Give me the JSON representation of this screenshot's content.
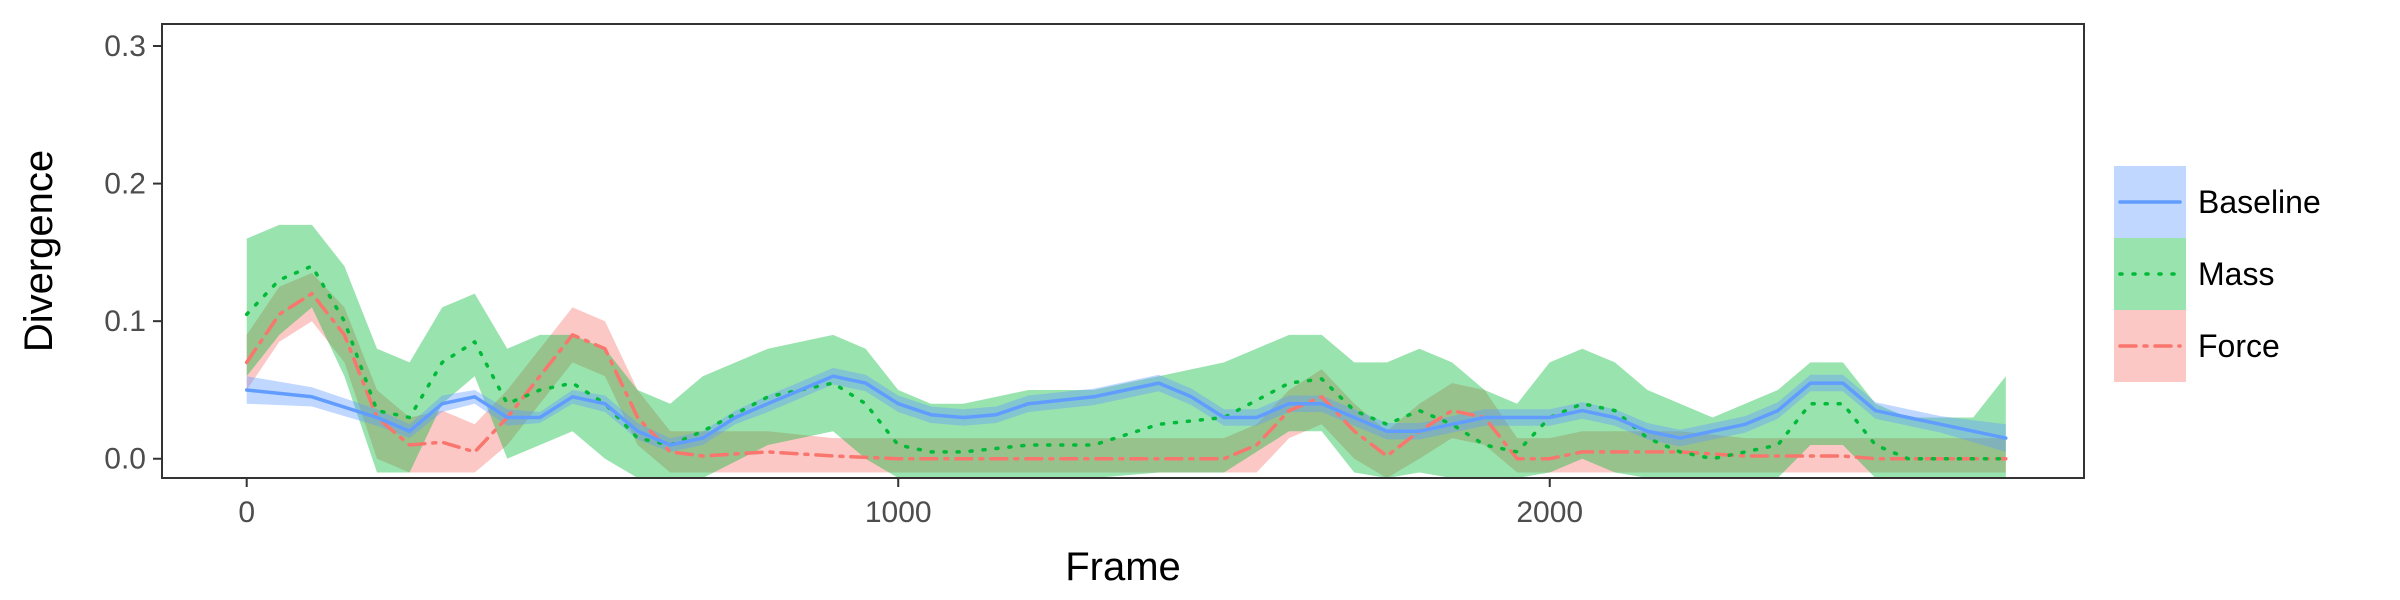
{
  "chart_data": {
    "type": "line",
    "xlabel": "Frame",
    "ylabel": "Divergence",
    "xlim": [
      -130,
      2820
    ],
    "ylim": [
      -0.014,
      0.316
    ],
    "xticks": [
      0,
      1000,
      2000
    ],
    "xtick_labels": [
      "0",
      "1000",
      "2000"
    ],
    "yticks": [
      0.0,
      0.1,
      0.2,
      0.3
    ],
    "ytick_labels": [
      "0.0",
      "0.1",
      "0.2",
      "0.3"
    ],
    "grid": false,
    "legend_position": "right",
    "series": [
      {
        "name": "Baseline",
        "color": "#619CFF",
        "line_style": "solid",
        "x": [
          0,
          100,
          200,
          250,
          300,
          350,
          400,
          450,
          500,
          550,
          600,
          650,
          700,
          750,
          800,
          850,
          900,
          950,
          1000,
          1050,
          1100,
          1150,
          1200,
          1300,
          1400,
          1450,
          1500,
          1550,
          1600,
          1650,
          1700,
          1750,
          1800,
          1850,
          1900,
          1950,
          2000,
          2050,
          2100,
          2150,
          2200,
          2250,
          2300,
          2350,
          2400,
          2450,
          2500,
          2550,
          2600,
          2650,
          2700
        ],
        "y": [
          0.05,
          0.045,
          0.03,
          0.02,
          0.04,
          0.045,
          0.03,
          0.03,
          0.045,
          0.04,
          0.02,
          0.01,
          0.015,
          0.03,
          0.04,
          0.05,
          0.06,
          0.055,
          0.04,
          0.032,
          0.03,
          0.032,
          0.04,
          0.045,
          0.055,
          0.045,
          0.03,
          0.03,
          0.04,
          0.04,
          0.03,
          0.02,
          0.02,
          0.025,
          0.03,
          0.03,
          0.03,
          0.035,
          0.03,
          0.02,
          0.015,
          0.02,
          0.025,
          0.035,
          0.055,
          0.055,
          0.035,
          0.03,
          0.025,
          0.02,
          0.015
        ],
        "lower": [
          0.04,
          0.038,
          0.024,
          0.015,
          0.034,
          0.04,
          0.024,
          0.026,
          0.04,
          0.034,
          0.014,
          0.005,
          0.01,
          0.025,
          0.034,
          0.044,
          0.054,
          0.049,
          0.034,
          0.026,
          0.024,
          0.026,
          0.034,
          0.039,
          0.049,
          0.039,
          0.024,
          0.024,
          0.034,
          0.034,
          0.024,
          0.014,
          0.014,
          0.019,
          0.024,
          0.024,
          0.024,
          0.029,
          0.024,
          0.014,
          0.009,
          0.014,
          0.019,
          0.029,
          0.049,
          0.049,
          0.029,
          0.024,
          0.019,
          0.012,
          0.005
        ],
        "upper": [
          0.06,
          0.052,
          0.036,
          0.025,
          0.046,
          0.05,
          0.036,
          0.034,
          0.05,
          0.046,
          0.026,
          0.015,
          0.02,
          0.035,
          0.046,
          0.056,
          0.066,
          0.061,
          0.046,
          0.038,
          0.036,
          0.038,
          0.046,
          0.051,
          0.061,
          0.051,
          0.036,
          0.036,
          0.046,
          0.046,
          0.036,
          0.026,
          0.026,
          0.031,
          0.036,
          0.036,
          0.036,
          0.041,
          0.036,
          0.026,
          0.021,
          0.026,
          0.031,
          0.041,
          0.061,
          0.061,
          0.041,
          0.036,
          0.031,
          0.028,
          0.025
        ]
      },
      {
        "name": "Mass",
        "color": "#00BA38",
        "line_style": "dotted",
        "x": [
          0,
          50,
          100,
          150,
          200,
          250,
          300,
          350,
          400,
          450,
          500,
          550,
          600,
          650,
          700,
          800,
          900,
          950,
          1000,
          1050,
          1100,
          1200,
          1300,
          1400,
          1500,
          1600,
          1650,
          1700,
          1750,
          1800,
          1850,
          1900,
          1950,
          2000,
          2050,
          2100,
          2150,
          2200,
          2250,
          2300,
          2350,
          2400,
          2450,
          2500,
          2550,
          2600,
          2650,
          2700
        ],
        "y": [
          0.105,
          0.13,
          0.14,
          0.1,
          0.035,
          0.03,
          0.07,
          0.085,
          0.04,
          0.05,
          0.055,
          0.04,
          0.015,
          0.01,
          0.02,
          0.045,
          0.055,
          0.04,
          0.01,
          0.005,
          0.005,
          0.01,
          0.01,
          0.025,
          0.03,
          0.055,
          0.058,
          0.035,
          0.025,
          0.035,
          0.025,
          0.01,
          0.005,
          0.03,
          0.04,
          0.035,
          0.015,
          0.005,
          0.0,
          0.005,
          0.01,
          0.04,
          0.04,
          0.01,
          0.0,
          0.0,
          0.0,
          0.0
        ],
        "lower": [
          0.06,
          0.09,
          0.11,
          0.06,
          -0.01,
          -0.01,
          0.04,
          0.06,
          0.0,
          0.01,
          0.02,
          0.0,
          -0.02,
          -0.02,
          -0.02,
          0.01,
          0.02,
          0.0,
          -0.03,
          -0.03,
          -0.03,
          -0.03,
          -0.03,
          -0.01,
          -0.01,
          0.02,
          0.02,
          -0.01,
          -0.02,
          -0.01,
          -0.02,
          -0.03,
          -0.03,
          -0.01,
          0.0,
          -0.01,
          -0.03,
          -0.03,
          -0.03,
          -0.03,
          -0.03,
          0.01,
          0.01,
          -0.03,
          -0.03,
          -0.03,
          -0.03,
          -0.03
        ],
        "upper": [
          0.16,
          0.17,
          0.17,
          0.14,
          0.08,
          0.07,
          0.11,
          0.12,
          0.08,
          0.09,
          0.09,
          0.08,
          0.05,
          0.04,
          0.06,
          0.08,
          0.09,
          0.08,
          0.05,
          0.04,
          0.04,
          0.05,
          0.05,
          0.06,
          0.07,
          0.09,
          0.09,
          0.07,
          0.07,
          0.08,
          0.07,
          0.05,
          0.04,
          0.07,
          0.08,
          0.07,
          0.05,
          0.04,
          0.03,
          0.04,
          0.05,
          0.07,
          0.07,
          0.04,
          0.03,
          0.03,
          0.03,
          0.06
        ]
      },
      {
        "name": "Force",
        "color": "#F8766D",
        "line_style": "dashdot",
        "x": [
          0,
          50,
          100,
          150,
          200,
          250,
          300,
          350,
          400,
          450,
          500,
          550,
          600,
          650,
          700,
          800,
          900,
          1000,
          1100,
          1200,
          1300,
          1400,
          1500,
          1550,
          1600,
          1650,
          1700,
          1750,
          1800,
          1850,
          1900,
          1950,
          2000,
          2050,
          2100,
          2200,
          2300,
          2400,
          2450,
          2500,
          2550,
          2600,
          2650,
          2700
        ],
        "y": [
          0.07,
          0.105,
          0.12,
          0.09,
          0.03,
          0.01,
          0.012,
          0.005,
          0.03,
          0.06,
          0.09,
          0.08,
          0.03,
          0.005,
          0.002,
          0.005,
          0.002,
          0.0,
          0.0,
          0.0,
          0.0,
          0.0,
          0.0,
          0.01,
          0.035,
          0.045,
          0.02,
          0.002,
          0.02,
          0.035,
          0.03,
          0.0,
          0.0,
          0.005,
          0.005,
          0.005,
          0.002,
          0.002,
          0.002,
          0.0,
          0.0,
          0.0,
          0.0,
          0.0
        ],
        "lower": [
          0.05,
          0.085,
          0.1,
          0.07,
          0.0,
          -0.01,
          -0.01,
          -0.01,
          0.01,
          0.04,
          0.07,
          0.06,
          0.01,
          -0.01,
          -0.01,
          -0.01,
          -0.01,
          -0.01,
          -0.01,
          -0.01,
          -0.01,
          -0.01,
          -0.01,
          -0.01,
          0.015,
          0.025,
          0.0,
          -0.014,
          0.0,
          0.015,
          0.01,
          -0.01,
          -0.01,
          -0.01,
          -0.01,
          -0.01,
          -0.01,
          -0.01,
          -0.01,
          -0.01,
          -0.01,
          -0.01,
          -0.01,
          -0.01
        ],
        "upper": [
          0.09,
          0.125,
          0.135,
          0.11,
          0.05,
          0.03,
          0.035,
          0.025,
          0.05,
          0.08,
          0.11,
          0.1,
          0.05,
          0.02,
          0.02,
          0.02,
          0.015,
          0.015,
          0.015,
          0.015,
          0.015,
          0.015,
          0.015,
          0.025,
          0.05,
          0.065,
          0.04,
          0.02,
          0.04,
          0.055,
          0.05,
          0.015,
          0.015,
          0.02,
          0.02,
          0.02,
          0.015,
          0.015,
          0.015,
          0.015,
          0.015,
          0.015,
          0.015,
          0.015
        ]
      }
    ]
  }
}
